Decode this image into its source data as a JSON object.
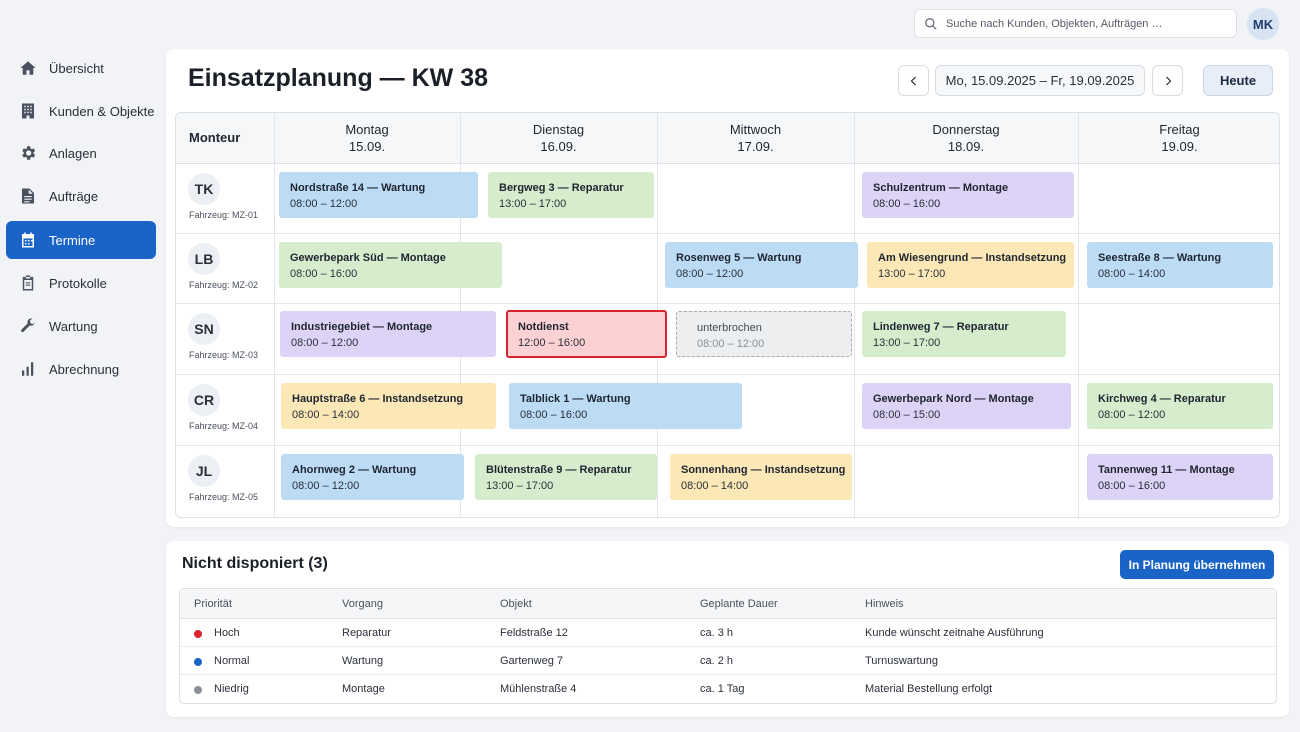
{
  "sidebar": {
    "items": [
      {
        "label": "Übersicht",
        "icon": "home-icon",
        "active": false
      },
      {
        "label": "Kunden & Objekte",
        "icon": "building-icon",
        "active": false
      },
      {
        "label": "Anlagen",
        "icon": "gear-icon",
        "active": false
      },
      {
        "label": "Aufträge",
        "icon": "document-icon",
        "active": false
      },
      {
        "label": "Termine",
        "icon": "calendar-icon",
        "active": true
      },
      {
        "label": "Protokolle",
        "icon": "clipboard-icon",
        "active": false
      },
      {
        "label": "Wartung",
        "icon": "wrench-icon",
        "active": false
      },
      {
        "label": "Abrechnung",
        "icon": "bar-chart-icon",
        "active": false
      }
    ]
  },
  "topbar": {
    "search_placeholder": "Suche nach Kunden, Objekten, Aufträgen …",
    "user_initials": "MK"
  },
  "schedule": {
    "title": "Einsatzplanung — KW 38",
    "date_range": "Mo, 15.09.2025 – Fr, 19.09.2025",
    "today_label": "Heute",
    "monteur_header": "Monteur",
    "days": [
      {
        "name": "Montag",
        "date": "15.09."
      },
      {
        "name": "Dienstag",
        "date": "16.09."
      },
      {
        "name": "Mittwoch",
        "date": "17.09."
      },
      {
        "name": "Donnerstag",
        "date": "18.09."
      },
      {
        "name": "Freitag",
        "date": "19.09."
      }
    ],
    "technicians": [
      {
        "initials": "TK",
        "vehicle": "Fahrzeug: MZ-01"
      },
      {
        "initials": "LB",
        "vehicle": "Fahrzeug: MZ-02"
      },
      {
        "initials": "SN",
        "vehicle": "Fahrzeug: MZ-03"
      },
      {
        "initials": "CR",
        "vehicle": "Fahrzeug: MZ-04"
      },
      {
        "initials": "JL",
        "vehicle": "Fahrzeug: MZ-05"
      }
    ],
    "events": [
      {
        "title": "Nordstraße 14 — Wartung",
        "time": "08:00 – 12:00",
        "type": "Wartung",
        "color": "#bcdcf6",
        "status": "normal"
      },
      {
        "title": "Bergweg 3 — Reparatur",
        "time": "13:00 – 17:00",
        "type": "Reparatur",
        "color": "#d5edcd",
        "status": "normal"
      },
      {
        "title": "Schulzentrum — Montage",
        "time": "08:00 – 16:00",
        "type": "Montage",
        "color": "#ddd3f6",
        "status": "normal"
      },
      {
        "title": "Gewerbepark Süd — Montage",
        "time": "08:00 – 16:00",
        "type": "Montage",
        "color": "#d5edcd",
        "status": "normal"
      },
      {
        "title": "Rosenweg 5 — Wartung",
        "time": "08:00 – 12:00",
        "type": "Wartung",
        "color": "#bcdcf6",
        "status": "normal"
      },
      {
        "title": "Am Wiesengrund — Instandsetzung",
        "time": "13:00 – 17:00",
        "type": "Instandsetzung",
        "color": "#fbe8b6",
        "status": "normal"
      },
      {
        "title": "Seestraße 8 — Wartung",
        "time": "08:00 – 14:00",
        "type": "Wartung",
        "color": "#bcdcf6",
        "status": "normal"
      },
      {
        "title": "Industriegebiet — Montage",
        "time": "08:00 – 12:00",
        "type": "Montage",
        "color": "#ddd3f6",
        "status": "normal"
      },
      {
        "title": "Notdienst",
        "time": "12:00 – 16:00",
        "type": "Notdienst",
        "color": "#fcd1d3",
        "status": "emergency"
      },
      {
        "title": "unterbrochen",
        "time": "08:00 – 12:00",
        "type": "unterbrochen",
        "color": "#eceeef",
        "status": "interrupted"
      },
      {
        "title": "Lindenweg 7 — Reparatur",
        "time": "13:00 – 17:00",
        "type": "Reparatur",
        "color": "#d5edcd",
        "status": "normal"
      },
      {
        "title": "Hauptstraße 6 — Instandsetzung",
        "time": "08:00 – 14:00",
        "type": "Instandsetzung",
        "color": "#fbe8b6",
        "status": "normal"
      },
      {
        "title": "Talblick 1 — Wartung",
        "time": "08:00 – 16:00",
        "type": "Wartung",
        "color": "#bcdcf6",
        "status": "normal"
      },
      {
        "title": "Gewerbepark Nord — Montage",
        "time": "08:00 – 15:00",
        "type": "Montage",
        "color": "#ddd3f6",
        "status": "normal"
      },
      {
        "title": "Kirchweg 4 — Reparatur",
        "time": "08:00 – 12:00",
        "type": "Reparatur",
        "color": "#d5edcd",
        "status": "normal"
      },
      {
        "title": "Ahornweg 2 — Wartung",
        "time": "08:00 – 12:00",
        "type": "Wartung",
        "color": "#bcdcf6",
        "status": "normal"
      },
      {
        "title": "Blütenstraße 9 — Reparatur",
        "time": "13:00 – 17:00",
        "type": "Reparatur",
        "color": "#d5edcd",
        "status": "normal"
      },
      {
        "title": "Sonnenhang — Instandsetzung",
        "time": "08:00 – 14:00",
        "type": "Instandsetzung",
        "color": "#fbe8b6",
        "status": "normal"
      },
      {
        "title": "Tannenweg 11 — Montage",
        "time": "08:00 – 16:00",
        "type": "Montage",
        "color": "#ddd3f6",
        "status": "normal"
      }
    ]
  },
  "backlog": {
    "title": "Nicht disponiert (3)",
    "action_label": "In Planung übernehmen",
    "columns": [
      "Priorität",
      "Vorgang",
      "Objekt",
      "Geplante Dauer",
      "Hinweis"
    ],
    "rows": [
      {
        "priority": "Hoch",
        "priority_color": "#e0202e",
        "type": "Reparatur",
        "object": "Feldstraße 12",
        "duration": "ca. 3 h",
        "note": "Kunde wünscht zeitnahe Ausführung"
      },
      {
        "priority": "Normal",
        "priority_color": "#1a64c8",
        "type": "Wartung",
        "object": "Gartenweg 7",
        "duration": "ca. 2 h",
        "note": "Turnuswartung"
      },
      {
        "priority": "Niedrig",
        "priority_color": "#8a8f98",
        "type": "Montage",
        "object": "Mühlenstraße 4",
        "duration": "ca. 1 Tag",
        "note": "Material Bestellung erfolgt"
      }
    ]
  }
}
